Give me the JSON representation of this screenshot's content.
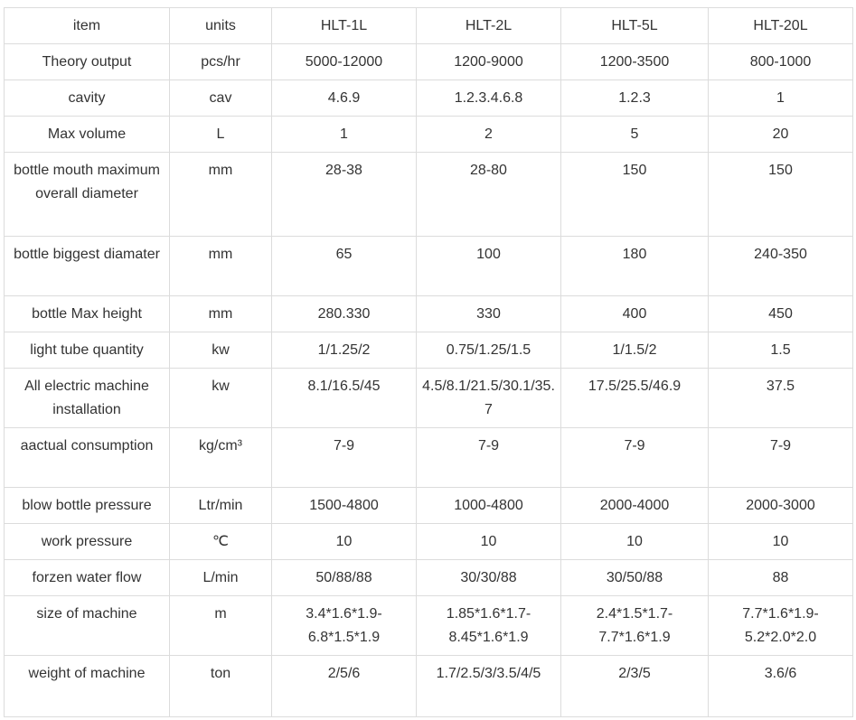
{
  "table": {
    "header": [
      "item",
      "units",
      "HLT-1L",
      "HLT-2L",
      "HLT-5L",
      "HLT-20L"
    ],
    "rows": [
      [
        "Theory output",
        "pcs/hr",
        "5000-12000",
        "1200-9000",
        "1200-3500",
        "800-1000"
      ],
      [
        "cavity",
        "cav",
        "4.6.9",
        "1.2.3.4.6.8",
        "1.2.3",
        "1"
      ],
      [
        "Max volume",
        "L",
        "1",
        "2",
        "5",
        "20"
      ],
      [
        "bottle mouth maximum overall diameter",
        "mm",
        "28-38",
        "28-80",
        "150",
        "150"
      ],
      [
        "bottle biggest diamater",
        "mm",
        "65",
        "100",
        "180",
        "240-350"
      ],
      [
        "bottle Max height",
        "mm",
        "280.330",
        "330",
        "400",
        "450"
      ],
      [
        "light tube quantity",
        "kw",
        "1/1.25/2",
        "0.75/1.25/1.5",
        "1/1.5/2",
        "1.5"
      ],
      [
        "All electric machine installation",
        "kw",
        "8.1/16.5/45",
        "4.5/8.1/21.5/30.1/35.7",
        "17.5/25.5/46.9",
        "37.5"
      ],
      [
        "aactual consumption",
        "kg/cm³",
        "7-9",
        "7-9",
        "7-9",
        "7-9"
      ],
      [
        "blow bottle pressure",
        "Ltr/min",
        "1500-4800",
        "1000-4800",
        "2000-4000",
        "2000-3000"
      ],
      [
        "work pressure",
        "℃",
        "10",
        "10",
        "10",
        "10"
      ],
      [
        "forzen water flow",
        "L/min",
        "50/88/88",
        "30/30/88",
        "30/50/88",
        "88"
      ],
      [
        "size of machine",
        "m",
        "3.4*1.6*1.9-6.8*1.5*1.9",
        "1.85*1.6*1.7-8.45*1.6*1.9",
        "2.4*1.5*1.7-7.7*1.6*1.9",
        "7.7*1.6*1.9-5.2*2.0*2.0"
      ],
      [
        "weight of machine",
        "ton",
        "2/5/6",
        "1.7/2.5/3/3.5/4/5",
        "2/3/5",
        "3.6/6"
      ]
    ]
  }
}
